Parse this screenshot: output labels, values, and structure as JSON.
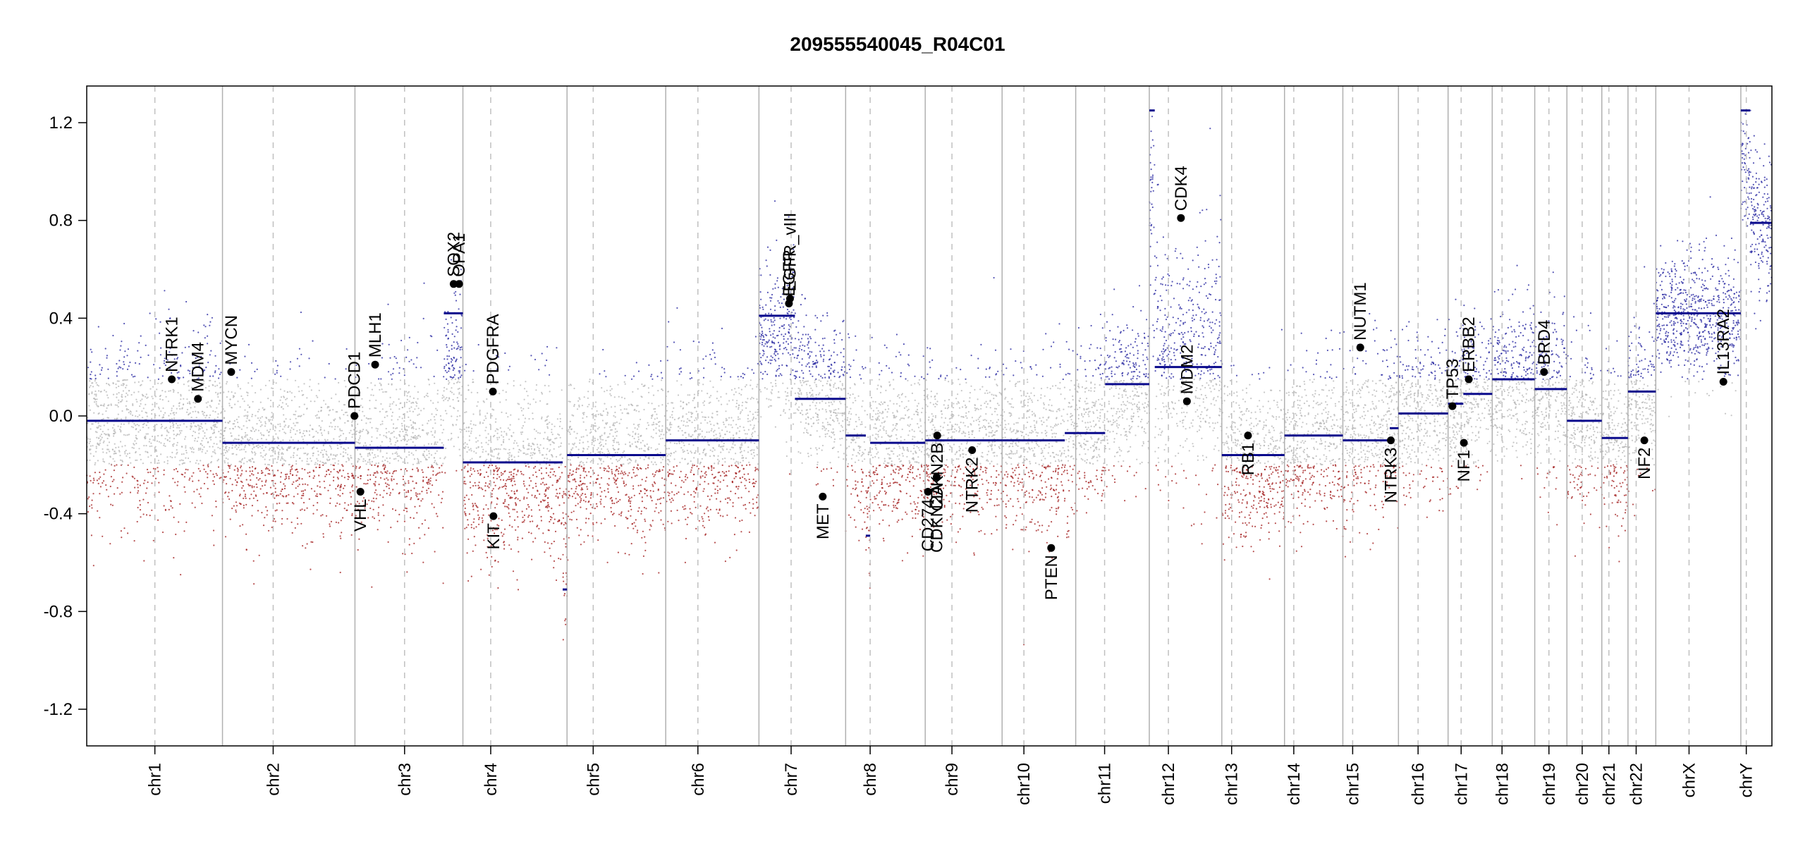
{
  "chart_data": {
    "type": "scatter",
    "title": "209555540045_R04C01",
    "xlabel": "",
    "ylabel": "",
    "ylim": [
      -1.35,
      1.35
    ],
    "yticks": [
      "-1.2",
      "-0.8",
      "-0.4",
      "0.0",
      "0.4",
      "0.8",
      "1.2"
    ],
    "ytick_values": [
      -1.2,
      -0.8,
      -0.4,
      0.0,
      0.4,
      0.8,
      1.2
    ],
    "grid": false,
    "colors": {
      "gain": "#1f1f9e",
      "loss": "#a01818",
      "neutral": "#b4b4b4",
      "segment": "#0a0a8c",
      "gene_dot": "#000000",
      "boundary": "#b0b0b0",
      "centromere": "#c0c0c0"
    },
    "chromosomes": [
      {
        "name": "chr1",
        "start": 0,
        "end": 249,
        "centromere": 125,
        "base": -0.1,
        "spread": 0.18
      },
      {
        "name": "chr2",
        "start": 249,
        "end": 492,
        "centromere": 342,
        "base": -0.2,
        "spread": 0.16
      },
      {
        "name": "chr3",
        "start": 492,
        "end": 690,
        "centromere": 583,
        "base": -0.15,
        "spread": 0.18
      },
      {
        "name": "chr4",
        "start": 690,
        "end": 881,
        "centromere": 741,
        "base": -0.25,
        "spread": 0.18
      },
      {
        "name": "chr5",
        "start": 881,
        "end": 1062,
        "centromere": 929,
        "base": -0.2,
        "spread": 0.16
      },
      {
        "name": "chr6",
        "start": 1062,
        "end": 1233,
        "centromere": 1121,
        "base": -0.15,
        "spread": 0.17
      },
      {
        "name": "chr7",
        "start": 1233,
        "end": 1392,
        "centromere": 1292,
        "base": 0.15,
        "spread": 0.16
      },
      {
        "name": "chr8",
        "start": 1392,
        "end": 1538,
        "centromere": 1437,
        "base": -0.15,
        "spread": 0.16
      },
      {
        "name": "chr9",
        "start": 1538,
        "end": 1679,
        "centromere": 1587,
        "base": -0.15,
        "spread": 0.16
      },
      {
        "name": "chr10",
        "start": 1679,
        "end": 1814,
        "centromere": 1719,
        "base": -0.15,
        "spread": 0.17
      },
      {
        "name": "chr11",
        "start": 1814,
        "end": 1949,
        "centromere": 1867,
        "base": 0.0,
        "spread": 0.16
      },
      {
        "name": "chr12",
        "start": 1949,
        "end": 2082,
        "centromere": 1984,
        "base": 0.25,
        "spread": 0.25
      },
      {
        "name": "chr13",
        "start": 2082,
        "end": 2197,
        "centromere": 2100,
        "base": -0.2,
        "spread": 0.16
      },
      {
        "name": "chr14",
        "start": 2197,
        "end": 2304,
        "centromere": 2214,
        "base": -0.12,
        "spread": 0.16
      },
      {
        "name": "chr15",
        "start": 2304,
        "end": 2406,
        "centromere": 2322,
        "base": -0.08,
        "spread": 0.16
      },
      {
        "name": "chr16",
        "start": 2406,
        "end": 2497,
        "centromere": 2442,
        "base": -0.02,
        "spread": 0.16
      },
      {
        "name": "chr17",
        "start": 2497,
        "end": 2578,
        "centromere": 2521,
        "base": 0.05,
        "spread": 0.16
      },
      {
        "name": "chr18",
        "start": 2578,
        "end": 2656,
        "centromere": 2596,
        "base": 0.1,
        "spread": 0.16
      },
      {
        "name": "chr19",
        "start": 2656,
        "end": 2715,
        "centromere": 2682,
        "base": 0.05,
        "spread": 0.16
      },
      {
        "name": "chr20",
        "start": 2715,
        "end": 2779,
        "centromere": 2743,
        "base": -0.05,
        "spread": 0.16
      },
      {
        "name": "chr21",
        "start": 2779,
        "end": 2827,
        "centromere": 2792,
        "base": -0.15,
        "spread": 0.16
      },
      {
        "name": "chr22",
        "start": 2827,
        "end": 2878,
        "centromere": 2842,
        "base": -0.05,
        "spread": 0.16
      },
      {
        "name": "chrX",
        "start": 2878,
        "end": 3034,
        "centromere": 2939,
        "base": 0.38,
        "spread": 0.13
      },
      {
        "name": "chrY",
        "start": 3034,
        "end": 3091,
        "centromere": 3044,
        "base": 0.75,
        "spread": 0.15
      }
    ],
    "segments": [
      {
        "start": 0,
        "end": 249,
        "value": -0.02
      },
      {
        "start": 249,
        "end": 492,
        "value": -0.11
      },
      {
        "start": 492,
        "end": 655,
        "value": -0.13
      },
      {
        "start": 655,
        "end": 690,
        "value": 0.42
      },
      {
        "start": 690,
        "end": 873,
        "value": -0.19
      },
      {
        "start": 873,
        "end": 881,
        "value": -0.71
      },
      {
        "start": 881,
        "end": 1062,
        "value": -0.16
      },
      {
        "start": 1062,
        "end": 1233,
        "value": -0.1
      },
      {
        "start": 1233,
        "end": 1299,
        "value": 0.41
      },
      {
        "start": 1299,
        "end": 1392,
        "value": 0.07
      },
      {
        "start": 1392,
        "end": 1429,
        "value": -0.08
      },
      {
        "start": 1429,
        "end": 1437,
        "value": -0.49
      },
      {
        "start": 1437,
        "end": 1538,
        "value": -0.11
      },
      {
        "start": 1538,
        "end": 1679,
        "value": -0.1
      },
      {
        "start": 1679,
        "end": 1794,
        "value": -0.1
      },
      {
        "start": 1794,
        "end": 1814,
        "value": -0.07
      },
      {
        "start": 1814,
        "end": 1868,
        "value": -0.07
      },
      {
        "start": 1868,
        "end": 1949,
        "value": 0.13
      },
      {
        "start": 1949,
        "end": 1959,
        "value": 1.25
      },
      {
        "start": 1959,
        "end": 2082,
        "value": 0.2
      },
      {
        "start": 2082,
        "end": 2197,
        "value": -0.16
      },
      {
        "start": 2197,
        "end": 2304,
        "value": -0.08
      },
      {
        "start": 2304,
        "end": 2390,
        "value": -0.1
      },
      {
        "start": 2390,
        "end": 2406,
        "value": -0.05
      },
      {
        "start": 2406,
        "end": 2497,
        "value": 0.01
      },
      {
        "start": 2497,
        "end": 2525,
        "value": 0.05
      },
      {
        "start": 2525,
        "end": 2578,
        "value": 0.09
      },
      {
        "start": 2578,
        "end": 2656,
        "value": 0.15
      },
      {
        "start": 2656,
        "end": 2715,
        "value": 0.11
      },
      {
        "start": 2715,
        "end": 2779,
        "value": -0.02
      },
      {
        "start": 2779,
        "end": 2827,
        "value": -0.09
      },
      {
        "start": 2827,
        "end": 2878,
        "value": 0.1
      },
      {
        "start": 2878,
        "end": 3034,
        "value": 0.42
      },
      {
        "start": 3034,
        "end": 3051,
        "value": 1.25
      },
      {
        "start": 3051,
        "end": 3091,
        "value": 0.79
      }
    ],
    "genes": [
      {
        "name": "NTRK1",
        "x": 156,
        "y": 0.15
      },
      {
        "name": "MDM4",
        "x": 204,
        "y": 0.07
      },
      {
        "name": "MYCN",
        "x": 265,
        "y": 0.18
      },
      {
        "name": "PDCD1",
        "x": 491,
        "y": 0.0
      },
      {
        "name": "VHL",
        "x": 502,
        "y": -0.31
      },
      {
        "name": "MLH1",
        "x": 529,
        "y": 0.21
      },
      {
        "name": "SOX2",
        "x": 673,
        "y": 0.54
      },
      {
        "name": "OPA1",
        "x": 683,
        "y": 0.54
      },
      {
        "name": "PDGFRA",
        "x": 745,
        "y": 0.1
      },
      {
        "name": "KIT",
        "x": 746,
        "y": -0.41
      },
      {
        "name": "EGFR",
        "x": 1288,
        "y": 0.46
      },
      {
        "name": "EGFR_vIII",
        "x": 1290,
        "y": 0.48
      },
      {
        "name": "MET",
        "x": 1350,
        "y": -0.33
      },
      {
        "name": "CD274",
        "x": 1543,
        "y": -0.31
      },
      {
        "name": "CDKN2A",
        "x": 1559,
        "y": -0.25
      },
      {
        "name": "CDKN2B",
        "x": 1560,
        "y": -0.08
      },
      {
        "name": "NTRK2",
        "x": 1624,
        "y": -0.14
      },
      {
        "name": "PTEN",
        "x": 1769,
        "y": -0.54
      },
      {
        "name": "MDM2",
        "x": 2018,
        "y": 0.06
      },
      {
        "name": "CDK4",
        "x": 2007,
        "y": 0.81
      },
      {
        "name": "RB1",
        "x": 2130,
        "y": -0.08
      },
      {
        "name": "NUTM1",
        "x": 2336,
        "y": 0.28
      },
      {
        "name": "NTRK3",
        "x": 2392,
        "y": -0.1
      },
      {
        "name": "TP53",
        "x": 2505,
        "y": 0.04
      },
      {
        "name": "ERBB2",
        "x": 2535,
        "y": 0.15
      },
      {
        "name": "NF1",
        "x": 2526,
        "y": -0.11
      },
      {
        "name": "BRD4",
        "x": 2673,
        "y": 0.18
      },
      {
        "name": "NF2",
        "x": 2857,
        "y": -0.1
      },
      {
        "name": "IL13RA2",
        "x": 3002,
        "y": 0.14
      }
    ]
  }
}
